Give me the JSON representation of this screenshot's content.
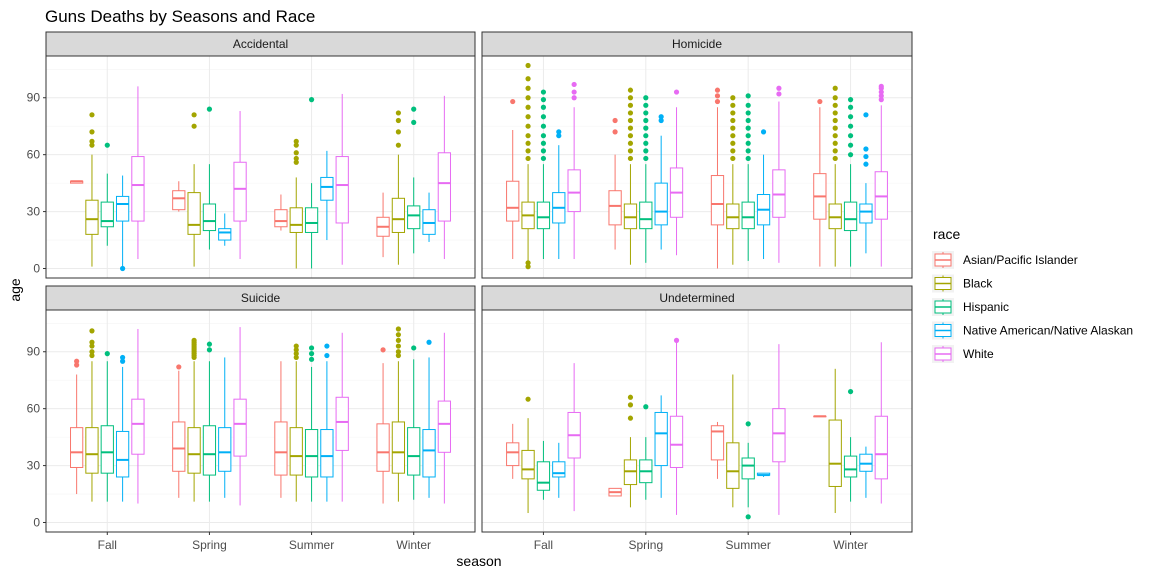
{
  "chart_data": {
    "type": "boxplot",
    "title": "Guns Deaths by Seasons and Race",
    "xlabel": "season",
    "ylabel": "age",
    "ylim": [
      -5,
      112
    ],
    "yticks": [
      0,
      30,
      60,
      90
    ],
    "categories": [
      "Fall",
      "Spring",
      "Summer",
      "Winter"
    ],
    "grid": true,
    "legend": {
      "title": "race",
      "position": "right",
      "entries": [
        {
          "name": "Asian/Pacific Islander",
          "color": "#F8766D"
        },
        {
          "name": "Black",
          "color": "#A3A500"
        },
        {
          "name": "Hispanic",
          "color": "#00BF7D"
        },
        {
          "name": "Native American/Native Alaskan",
          "color": "#00B0F6"
        },
        {
          "name": "White",
          "color": "#E76BF3"
        }
      ]
    },
    "panels": [
      {
        "name": "Accidental",
        "boxes": [
          [
            [
              45,
              45,
              46,
              46,
              46,
              []
            ],
            [
              1,
              18,
              26,
              36,
              60,
              [
                65,
                67,
                72,
                81
              ]
            ],
            [
              12,
              22,
              25,
              35,
              50,
              [
                65
              ]
            ],
            [
              0,
              25,
              34,
              38,
              49,
              [
                0
              ]
            ],
            [
              5,
              25,
              44,
              59,
              96,
              []
            ]
          ],
          [
            [
              30,
              31,
              37,
              41,
              46,
              []
            ],
            [
              1,
              18,
              23,
              40,
              55,
              [
                75,
                81
              ]
            ],
            [
              10,
              20,
              25,
              34,
              55,
              [
                84
              ]
            ],
            [
              12,
              15,
              19,
              21,
              29,
              []
            ],
            [
              5,
              25,
              42,
              56,
              83,
              []
            ]
          ],
          [
            [
              20,
              22,
              25,
              31,
              39,
              []
            ],
            [
              0,
              19,
              23,
              32,
              48,
              [
                56,
                58,
                61,
                65,
                67
              ]
            ],
            [
              0,
              19,
              24,
              32,
              45,
              [
                89
              ]
            ],
            [
              15,
              36,
              43,
              48,
              62,
              []
            ],
            [
              2,
              24,
              44,
              59,
              92,
              []
            ]
          ],
          [
            [
              6,
              17,
              22,
              27,
              40,
              []
            ],
            [
              2,
              19,
              26,
              37,
              60,
              [
                65,
                72,
                78,
                82
              ]
            ],
            [
              8,
              21,
              28,
              33,
              48,
              [
                77,
                84
              ]
            ],
            [
              14,
              18,
              24,
              31,
              40,
              []
            ],
            [
              5,
              25,
              45,
              61,
              91,
              []
            ]
          ]
        ]
      },
      {
        "name": "Homicide",
        "boxes": [
          [
            [
              5,
              25,
              32,
              46,
              73,
              [
                88
              ]
            ],
            [
              1,
              21,
              28,
              35,
              55,
              [
                1,
                3,
                58,
                62,
                66,
                70,
                75,
                80,
                85,
                90,
                95,
                100,
                107
              ]
            ],
            [
              5,
              21,
              27,
              35,
              55,
              [
                58,
                62,
                66,
                70,
                75,
                80,
                85,
                89,
                93
              ]
            ],
            [
              5,
              24,
              32,
              40,
              65,
              [
                70,
                72
              ]
            ],
            [
              5,
              30,
              40,
              52,
              85,
              [
                90,
                93,
                97
              ]
            ]
          ],
          [
            [
              10,
              23,
              33,
              41,
              60,
              [
                72,
                78
              ]
            ],
            [
              2,
              21,
              27,
              34,
              55,
              [
                58,
                62,
                66,
                70,
                74,
                78,
                82,
                86,
                90,
                94
              ]
            ],
            [
              3,
              21,
              26,
              35,
              55,
              [
                58,
                62,
                66,
                70,
                74,
                78,
                82,
                86,
                90
              ]
            ],
            [
              10,
              23,
              30,
              45,
              70,
              [
                78,
                80
              ]
            ],
            [
              7,
              27,
              40,
              53,
              85,
              [
                93
              ]
            ]
          ],
          [
            [
              0,
              23,
              34,
              49,
              85,
              [
                88,
                91,
                94
              ]
            ],
            [
              2,
              21,
              27,
              34,
              55,
              [
                58,
                62,
                66,
                70,
                74,
                78,
                82,
                86,
                90
              ]
            ],
            [
              4,
              21,
              27,
              35,
              55,
              [
                58,
                62,
                66,
                70,
                74,
                78,
                82,
                86,
                91
              ]
            ],
            [
              5,
              23,
              31,
              39,
              60,
              [
                72
              ]
            ],
            [
              3,
              27,
              39,
              52,
              88,
              [
                92,
                95
              ]
            ]
          ],
          [
            [
              1,
              26,
              38,
              50,
              85,
              [
                88
              ]
            ],
            [
              1,
              21,
              27,
              34,
              55,
              [
                58,
                62,
                66,
                70,
                74,
                78,
                82,
                86,
                90,
                95
              ]
            ],
            [
              1,
              20,
              26,
              35,
              55,
              [
                60,
                65,
                70,
                75,
                80,
                85,
                89
              ]
            ],
            [
              8,
              24,
              30,
              34,
              45,
              [
                55,
                59,
                63,
                81
              ]
            ],
            [
              1,
              26,
              38,
              51,
              86,
              [
                89,
                91,
                93,
                95,
                96
              ]
            ]
          ]
        ]
      },
      {
        "name": "Suicide",
        "boxes": [
          [
            [
              15,
              29,
              37,
              50,
              78,
              [
                83,
                85
              ]
            ],
            [
              11,
              26,
              36,
              50,
              85,
              [
                88,
                90,
                93,
                95,
                101
              ]
            ],
            [
              11,
              26,
              37,
              51,
              85,
              [
                89
              ]
            ],
            [
              11,
              24,
              33,
              48,
              82,
              [
                85,
                87
              ]
            ],
            [
              10,
              36,
              52,
              65,
              102,
              []
            ]
          ],
          [
            [
              13,
              27,
              39,
              53,
              80,
              [
                82
              ]
            ],
            [
              11,
              26,
              36,
              50,
              85,
              [
                87,
                88,
                89,
                90,
                91,
                92,
                93,
                94,
                95,
                96
              ]
            ],
            [
              11,
              25,
              36,
              51,
              85,
              [
                91,
                94
              ]
            ],
            [
              13,
              27,
              37,
              50,
              87,
              []
            ],
            [
              9,
              35,
              52,
              65,
              103,
              []
            ]
          ],
          [
            [
              13,
              25,
              37,
              53,
              85,
              []
            ],
            [
              11,
              25,
              35,
              50,
              85,
              [
                87,
                89,
                91,
                93
              ]
            ],
            [
              11,
              24,
              35,
              49,
              82,
              [
                86,
                89,
                92
              ]
            ],
            [
              11,
              24,
              35,
              49,
              85,
              [
                88,
                93
              ]
            ],
            [
              11,
              38,
              53,
              66,
              100,
              []
            ]
          ],
          [
            [
              10,
              27,
              37,
              52,
              84,
              [
                91
              ]
            ],
            [
              11,
              26,
              37,
              53,
              85,
              [
                88,
                90,
                93,
                96,
                99,
                102
              ]
            ],
            [
              12,
              25,
              35,
              50,
              86,
              [
                92
              ]
            ],
            [
              13,
              24,
              38,
              49,
              87,
              [
                95
              ]
            ],
            [
              10,
              37,
              52,
              64,
              100,
              []
            ]
          ]
        ]
      },
      {
        "name": "Undetermined",
        "boxes": [
          [
            [
              23,
              30,
              37,
              42,
              52,
              []
            ],
            [
              5,
              23,
              28,
              38,
              55,
              [
                65
              ]
            ],
            [
              12,
              17,
              21,
              32,
              43,
              []
            ],
            [
              13,
              24,
              26,
              32,
              42,
              []
            ],
            [
              6,
              34,
              46,
              58,
              84,
              []
            ]
          ],
          [
            [
              14,
              14,
              16,
              18,
              18,
              []
            ],
            [
              8,
              20,
              27,
              33,
              45,
              [
                55,
                62,
                66
              ]
            ],
            [
              12,
              21,
              27,
              33,
              45,
              [
                61
              ]
            ],
            [
              13,
              30,
              47,
              58,
              67,
              []
            ],
            [
              4,
              29,
              41,
              56,
              95,
              [
                96
              ]
            ]
          ],
          [
            [
              23,
              33,
              48,
              51,
              53,
              []
            ],
            [
              8,
              18,
              27,
              42,
              78,
              []
            ],
            [
              8,
              23,
              30,
              34,
              42,
              [
                3,
                52
              ]
            ],
            [
              24,
              25,
              25,
              26,
              26,
              []
            ],
            [
              4,
              32,
              47,
              60,
              94,
              []
            ]
          ],
          [
            [
              56,
              56,
              56,
              56,
              56,
              []
            ],
            [
              5,
              19,
              31,
              54,
              81,
              []
            ],
            [
              11,
              24,
              28,
              35,
              45,
              [
                69
              ]
            ],
            [
              13,
              27,
              31,
              36,
              40,
              []
            ],
            [
              10,
              23,
              36,
              56,
              95,
              []
            ]
          ]
        ]
      }
    ]
  }
}
